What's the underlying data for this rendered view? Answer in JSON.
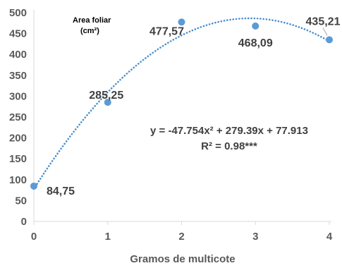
{
  "chart_data": {
    "type": "scatter",
    "x": [
      0,
      1,
      2,
      3,
      4
    ],
    "y": [
      84.75,
      285.25,
      477.57,
      468.09,
      435.21
    ],
    "data_labels": [
      "84,75",
      "285,25",
      "477,57",
      "468,09",
      "435,21"
    ],
    "x_ticks": [
      "0",
      "1",
      "2",
      "3",
      "4"
    ],
    "y_ticks": [
      "0",
      "50",
      "100",
      "150",
      "200",
      "250",
      "300",
      "350",
      "400",
      "450",
      "500"
    ],
    "xlim": [
      0,
      4
    ],
    "ylim": [
      0,
      500
    ],
    "xlabel": "Gramos de multicote",
    "annotation_line1": "Area foliar",
    "annotation_line2": "(cm²)",
    "trendline": {
      "type": "polynomial",
      "coefficients": [
        -47.754,
        279.39,
        77.913
      ],
      "equation": "y = -47.754x² + 279.39x + 77.913",
      "r_squared": "R² = 0.98***",
      "style": "dotted"
    },
    "grid": false,
    "legend": "none",
    "colors": {
      "points": "#5b9bd5",
      "trendline": "#4a8fcf",
      "axis": "#d9d9d9"
    }
  }
}
